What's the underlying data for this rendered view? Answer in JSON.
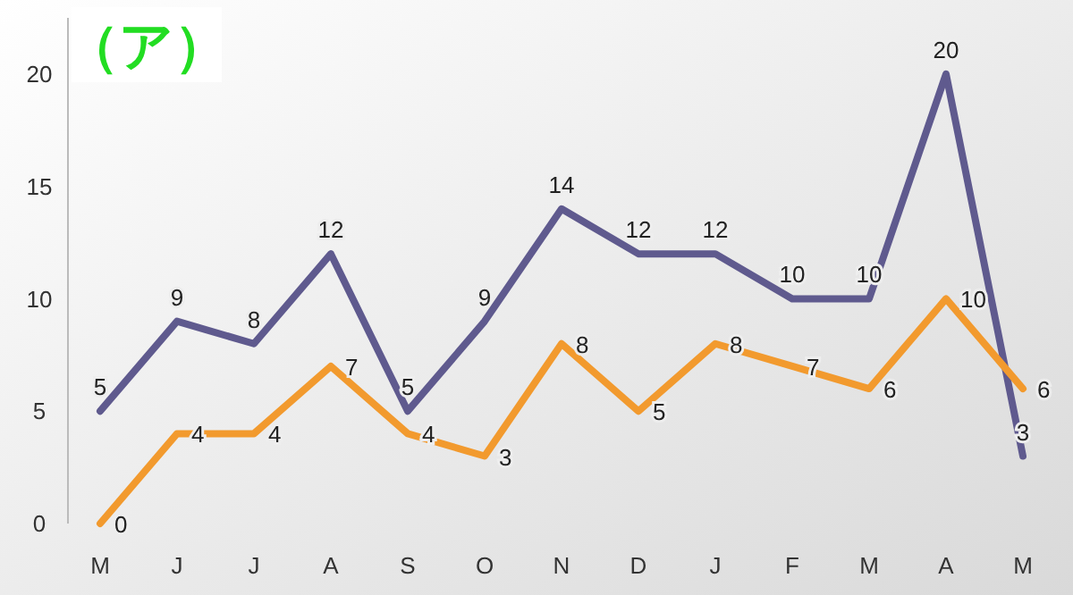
{
  "chart_data": {
    "type": "line",
    "title": "（ア）",
    "categories": [
      "M",
      "J",
      "J",
      "A",
      "S",
      "O",
      "N",
      "D",
      "J",
      "F",
      "M",
      "A",
      "M"
    ],
    "series": [
      {
        "color": "#5f5a8e",
        "values": [
          5,
          9,
          8,
          12,
          5,
          9,
          14,
          12,
          12,
          10,
          10,
          20,
          3
        ]
      },
      {
        "color": "#f29a2e",
        "values": [
          0,
          4,
          4,
          7,
          4,
          3,
          8,
          5,
          8,
          7,
          6,
          10,
          6
        ]
      }
    ],
    "ylim": [
      0,
      22.5
    ],
    "yticks": [
      0,
      5,
      10,
      15,
      20
    ],
    "grid": false,
    "data_labels": true,
    "marker": "none",
    "line_style": "solid"
  }
}
